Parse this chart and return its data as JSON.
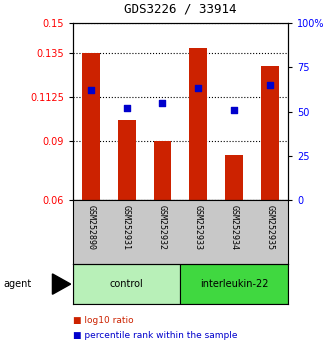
{
  "title": "GDS3226 / 33914",
  "samples": [
    "GSM252890",
    "GSM252931",
    "GSM252932",
    "GSM252933",
    "GSM252934",
    "GSM252935"
  ],
  "log10_ratio": [
    0.1345,
    0.1005,
    0.09,
    0.1375,
    0.083,
    0.128
  ],
  "percentile_rank": [
    62,
    52,
    55,
    63,
    51,
    65
  ],
  "groups": [
    {
      "label": "control",
      "samples": [
        0,
        1,
        2
      ],
      "color": "#b8f0b8"
    },
    {
      "label": "interleukin-22",
      "samples": [
        3,
        4,
        5
      ],
      "color": "#40d840"
    }
  ],
  "ymin": 0.06,
  "ymax": 0.15,
  "yticks_left": [
    0.06,
    0.09,
    0.1125,
    0.135,
    0.15
  ],
  "yticks_left_labels": [
    "0.06",
    "0.09",
    "0.1125",
    "0.135",
    "0.15"
  ],
  "yticks_right_vals": [
    0,
    25,
    50,
    75,
    100
  ],
  "yticks_right_labels": [
    "0",
    "25",
    "50",
    "75",
    "100%"
  ],
  "bar_color": "#cc2200",
  "dot_color": "#0000cc",
  "background_color": "#ffffff",
  "plot_bg": "#ffffff",
  "label_bg": "#c8c8c8",
  "legend_items": [
    "log10 ratio",
    "percentile rank within the sample"
  ],
  "legend_colors": [
    "#cc2200",
    "#0000cc"
  ]
}
